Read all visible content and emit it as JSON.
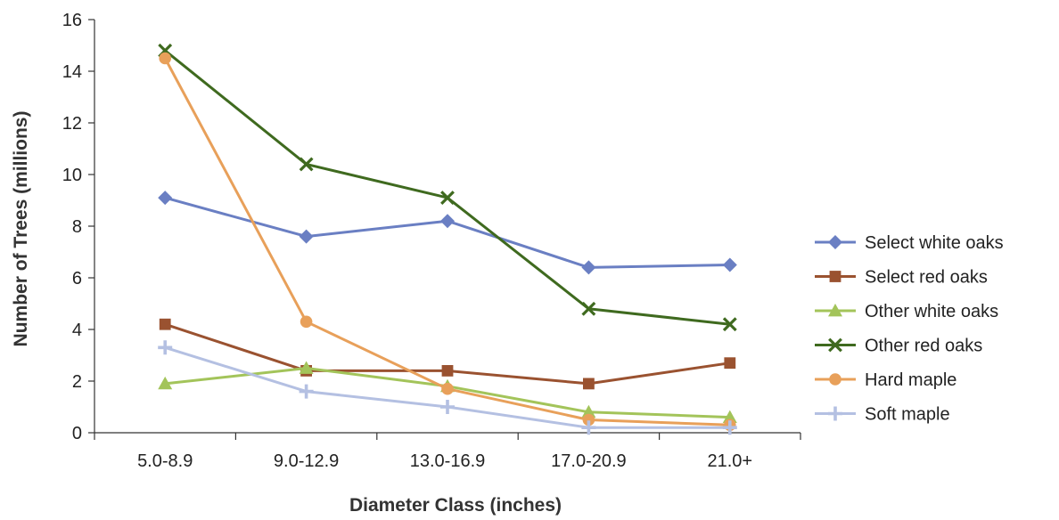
{
  "chart_data": {
    "type": "line",
    "title": "",
    "xlabel": "Diameter Class (inches)",
    "ylabel": "Number of Trees (millions)",
    "categories": [
      "5.0-8.9",
      "9.0-12.9",
      "13.0-16.9",
      "17.0-20.9",
      "21.0+"
    ],
    "ylim": [
      0,
      16
    ],
    "yticks": [
      0,
      2,
      4,
      6,
      8,
      10,
      12,
      14,
      16
    ],
    "grid": false,
    "legend_position": "right",
    "series": [
      {
        "name": "Select white oaks",
        "color": "#6a7fc3",
        "marker": "diamond",
        "values": [
          9.1,
          7.6,
          8.2,
          6.4,
          6.5
        ]
      },
      {
        "name": "Select red oaks",
        "color": "#9a5230",
        "marker": "square",
        "values": [
          4.2,
          2.4,
          2.4,
          1.9,
          2.7
        ]
      },
      {
        "name": "Other white oaks",
        "color": "#a3c45a",
        "marker": "triangle",
        "values": [
          1.9,
          2.5,
          1.8,
          0.8,
          0.6
        ]
      },
      {
        "name": "Other red oaks",
        "color": "#3f6a1f",
        "marker": "x",
        "values": [
          14.8,
          10.4,
          9.1,
          4.8,
          4.2
        ]
      },
      {
        "name": "Hard maple",
        "color": "#e8a05a",
        "marker": "circle",
        "values": [
          14.5,
          4.3,
          1.7,
          0.5,
          0.3
        ]
      },
      {
        "name": "Soft maple",
        "color": "#b4c0e2",
        "marker": "plus",
        "values": [
          3.3,
          1.6,
          1.0,
          0.2,
          0.2
        ]
      }
    ]
  }
}
